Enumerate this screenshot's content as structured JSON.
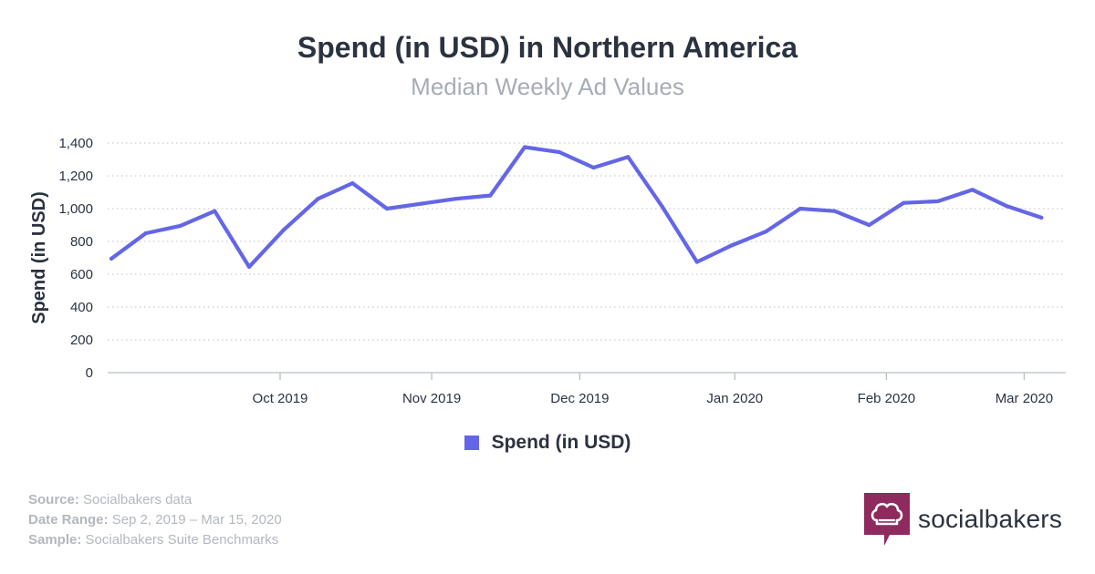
{
  "title": "Spend (in USD) in Northern America",
  "subtitle": "Median Weekly Ad Values",
  "colors": {
    "series": "#6466e8",
    "grid": "#c8ccd2",
    "brand": "#8e2a5d"
  },
  "chart_data": {
    "type": "line",
    "title": "Spend (in USD) in Northern America",
    "subtitle": "Median Weekly Ad Values",
    "xlabel": "",
    "ylabel": "Spend (in USD)",
    "ylim": [
      0,
      1400
    ],
    "yticks": [
      0,
      200,
      400,
      600,
      800,
      1000,
      1200,
      1400
    ],
    "ytick_labels": [
      "0",
      "200",
      "400",
      "600",
      "800",
      "1,000",
      "1,200",
      "1,400"
    ],
    "x_month_labels": [
      {
        "label": "Oct 2019",
        "week_index": 4.9
      },
      {
        "label": "Nov 2019",
        "week_index": 9.3
      },
      {
        "label": "Dec 2019",
        "week_index": 13.6
      },
      {
        "label": "Jan 2020",
        "week_index": 18.1
      },
      {
        "label": "Feb 2020",
        "week_index": 22.5
      },
      {
        "label": "Mar 2020",
        "week_index": 26.5
      }
    ],
    "grid": true,
    "legend": "bottom-center",
    "series": [
      {
        "name": "Spend (in USD)",
        "week_start": [
          "2019-09-02",
          "2019-09-09",
          "2019-09-16",
          "2019-09-23",
          "2019-09-30",
          "2019-10-07",
          "2019-10-14",
          "2019-10-21",
          "2019-10-28",
          "2019-11-04",
          "2019-11-11",
          "2019-11-18",
          "2019-11-25",
          "2019-12-02",
          "2019-12-09",
          "2019-12-16",
          "2019-12-23",
          "2019-12-30",
          "2020-01-06",
          "2020-01-13",
          "2020-01-20",
          "2020-01-27",
          "2020-02-03",
          "2020-02-10",
          "2020-02-17",
          "2020-02-24",
          "2020-03-02",
          "2020-03-09"
        ],
        "values": [
          695,
          850,
          895,
          985,
          645,
          870,
          1060,
          1155,
          1000,
          1030,
          1060,
          1080,
          1375,
          1345,
          1250,
          1315,
          1010,
          675,
          775,
          860,
          1000,
          985,
          900,
          1035,
          1045,
          1115,
          1015,
          945
        ]
      }
    ]
  },
  "legend": {
    "label": "Spend (in USD)"
  },
  "footer": {
    "source_label": "Source:",
    "source_value": "Socialbakers data",
    "range_label": "Date Range:",
    "range_value": "Sep 2, 2019 – Mar 15, 2020",
    "sample_label": "Sample:",
    "sample_value": "Socialbakers Suite Benchmarks"
  },
  "brand": {
    "name": "socialbakers",
    "icon": "chef-hat-icon"
  }
}
